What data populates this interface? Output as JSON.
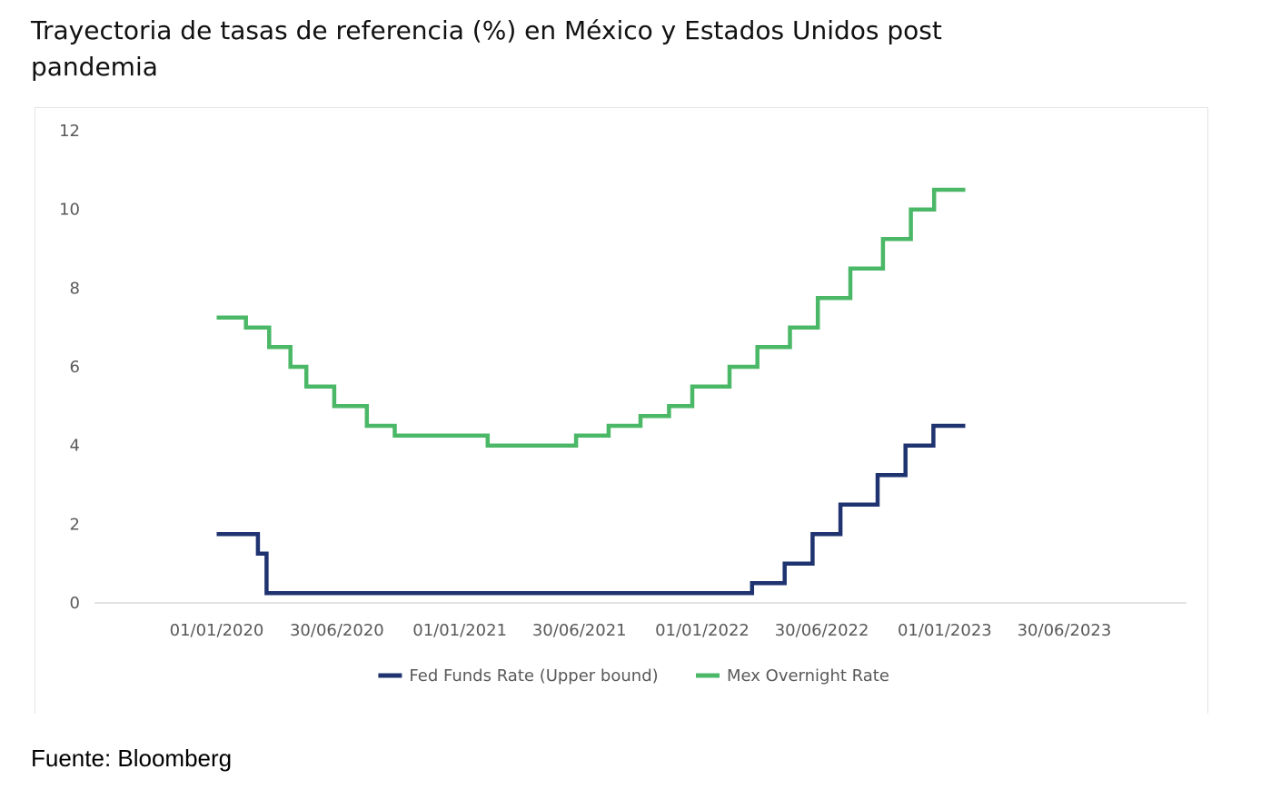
{
  "title": "Trayectoria de tasas de referencia (%) en México y Estados Unidos post pandemia",
  "source": "Fuente: Bloomberg",
  "colors": {
    "fed": "#1f3370",
    "mex": "#4bb867",
    "axis": "#d9d9d9"
  },
  "chart_data": {
    "type": "line",
    "step": true,
    "title": "",
    "xlabel": "",
    "ylabel": "",
    "ylim": [
      0,
      12
    ],
    "yticks": [
      0,
      2,
      4,
      6,
      8,
      10,
      12
    ],
    "xlim": [
      "2019-07-01",
      "2023-12-31"
    ],
    "xticks": [
      "2020-01-01",
      "2020-06-30",
      "2021-01-01",
      "2021-06-30",
      "2022-01-01",
      "2022-06-30",
      "2023-01-01",
      "2023-06-30"
    ],
    "xtick_labels": [
      "01/01/2020",
      "30/06/2020",
      "01/01/2021",
      "30/06/2021",
      "01/01/2022",
      "30/06/2022",
      "01/01/2023",
      "30/06/2023"
    ],
    "legend_position": "bottom",
    "grid": false,
    "series": [
      {
        "name": "Fed Funds Rate (Upper bound)",
        "color": "#1f3370",
        "points": [
          [
            "2020-01-01",
            1.75
          ],
          [
            "2020-03-03",
            1.25
          ],
          [
            "2020-03-16",
            0.25
          ],
          [
            "2022-03-17",
            0.5
          ],
          [
            "2022-05-05",
            1.0
          ],
          [
            "2022-06-16",
            1.75
          ],
          [
            "2022-07-28",
            2.5
          ],
          [
            "2022-09-22",
            3.25
          ],
          [
            "2022-11-03",
            4.0
          ],
          [
            "2022-12-15",
            4.5
          ],
          [
            "2023-02-01",
            4.5
          ]
        ]
      },
      {
        "name": "Mex Overnight Rate",
        "color": "#4bb867",
        "points": [
          [
            "2020-01-01",
            7.25
          ],
          [
            "2020-02-14",
            7.0
          ],
          [
            "2020-03-20",
            6.5
          ],
          [
            "2020-04-21",
            6.0
          ],
          [
            "2020-05-15",
            5.5
          ],
          [
            "2020-06-26",
            5.0
          ],
          [
            "2020-08-14",
            4.5
          ],
          [
            "2020-09-25",
            4.25
          ],
          [
            "2021-02-12",
            4.0
          ],
          [
            "2021-06-25",
            4.25
          ],
          [
            "2021-08-13",
            4.5
          ],
          [
            "2021-09-30",
            4.75
          ],
          [
            "2021-11-12",
            5.0
          ],
          [
            "2021-12-17",
            5.5
          ],
          [
            "2022-02-11",
            6.0
          ],
          [
            "2022-03-25",
            6.5
          ],
          [
            "2022-05-13",
            7.0
          ],
          [
            "2022-06-24",
            7.75
          ],
          [
            "2022-08-12",
            8.5
          ],
          [
            "2022-09-30",
            9.25
          ],
          [
            "2022-11-11",
            10.0
          ],
          [
            "2022-12-16",
            10.5
          ],
          [
            "2023-02-01",
            10.5
          ]
        ]
      }
    ]
  }
}
